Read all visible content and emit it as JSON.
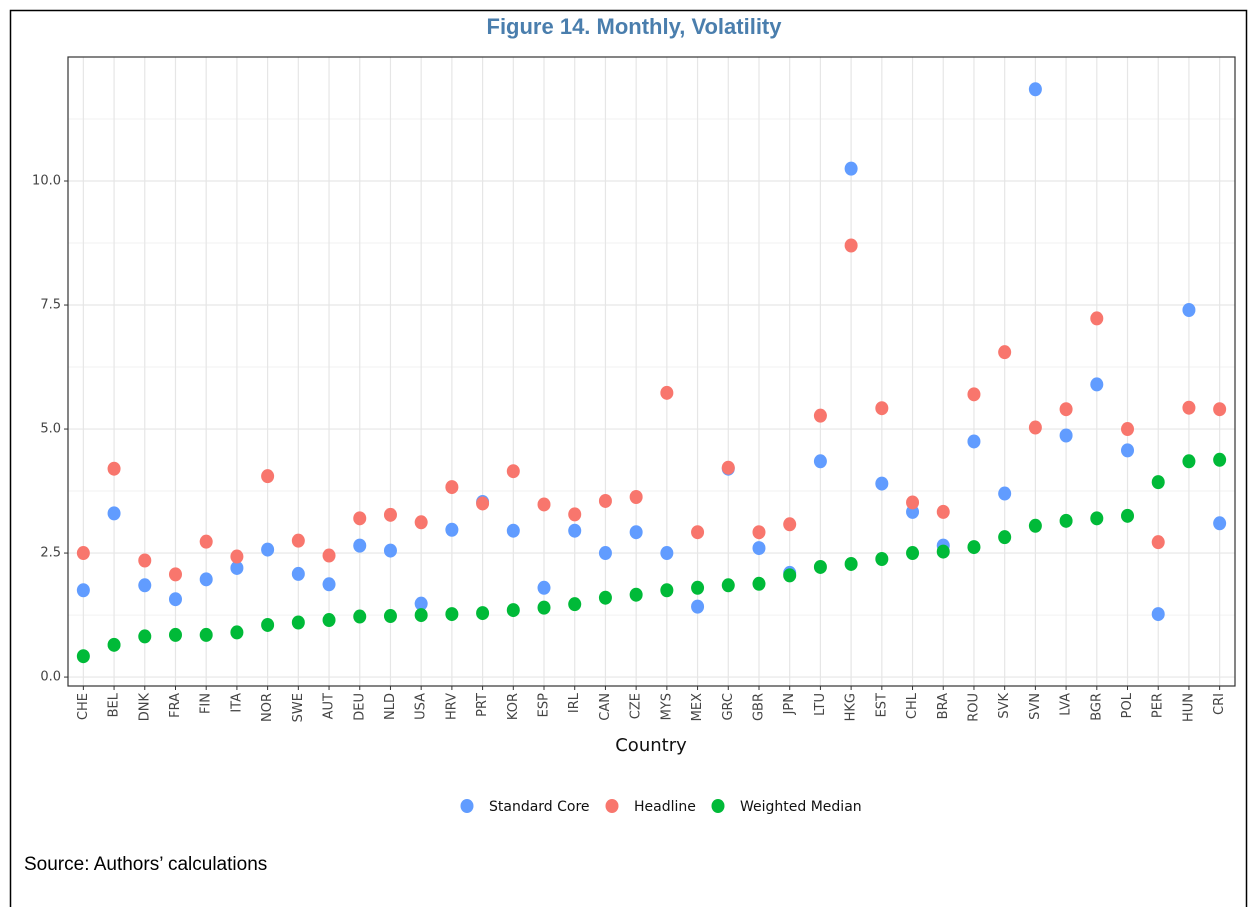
{
  "chart_data": {
    "type": "scatter",
    "title": "Figure 14. Monthly, Volatility",
    "x_label": "Country",
    "source": "Source: Authors’ calculations",
    "categories": [
      "CHE",
      "BEL",
      "DNK",
      "FRA",
      "FIN",
      "ITA",
      "NOR",
      "SWE",
      "AUT",
      "DEU",
      "NLD",
      "USA",
      "HRV",
      "PRT",
      "KOR",
      "ESP",
      "IRL",
      "CAN",
      "CZE",
      "MYS",
      "MEX",
      "GRC",
      "GBR",
      "JPN",
      "LTU",
      "HKG",
      "EST",
      "CHL",
      "BRA",
      "ROU",
      "SVK",
      "SVN",
      "LVA",
      "BGR",
      "POL",
      "PER",
      "HUN",
      "CRI"
    ],
    "series": [
      {
        "name": "Standard Core",
        "color": "#619CFF",
        "values": [
          1.75,
          3.3,
          1.85,
          1.57,
          1.97,
          2.2,
          2.57,
          2.08,
          1.87,
          2.65,
          2.55,
          1.48,
          2.97,
          3.53,
          2.95,
          1.8,
          2.95,
          2.5,
          2.92,
          2.5,
          1.42,
          4.2,
          2.6,
          2.1,
          4.35,
          10.25,
          3.9,
          3.33,
          2.65,
          4.75,
          3.7,
          11.85,
          4.87,
          5.9,
          4.57,
          1.27,
          7.4,
          3.1
        ]
      },
      {
        "name": "Headline",
        "color": "#F8766D",
        "values": [
          2.5,
          4.2,
          2.35,
          2.07,
          2.73,
          2.43,
          4.05,
          2.75,
          2.45,
          3.2,
          3.27,
          3.12,
          3.83,
          3.5,
          4.15,
          3.48,
          3.28,
          3.55,
          3.63,
          5.73,
          2.92,
          4.22,
          2.92,
          3.08,
          5.27,
          8.7,
          5.42,
          3.52,
          3.33,
          5.7,
          6.55,
          5.03,
          5.4,
          7.23,
          5.0,
          2.72,
          5.43,
          5.4
        ]
      },
      {
        "name": "Weighted Median",
        "color": "#00BA38",
        "values": [
          0.42,
          0.65,
          0.82,
          0.85,
          0.85,
          0.9,
          1.05,
          1.1,
          1.15,
          1.22,
          1.23,
          1.25,
          1.27,
          1.29,
          1.35,
          1.4,
          1.47,
          1.6,
          1.66,
          1.75,
          1.8,
          1.85,
          1.88,
          2.05,
          2.22,
          2.28,
          2.38,
          2.5,
          2.53,
          2.62,
          2.82,
          3.05,
          3.15,
          3.2,
          3.25,
          3.93,
          4.35,
          4.38
        ]
      }
    ],
    "ylim": [
      -0.18,
      12.5
    ],
    "yticks": [
      {
        "value": 0,
        "label": "0.0"
      },
      2.5,
      {
        "value": 5,
        "label": "5.0"
      },
      7.5,
      {
        "value": 10,
        "label": "10.0"
      }
    ],
    "grid": true
  }
}
